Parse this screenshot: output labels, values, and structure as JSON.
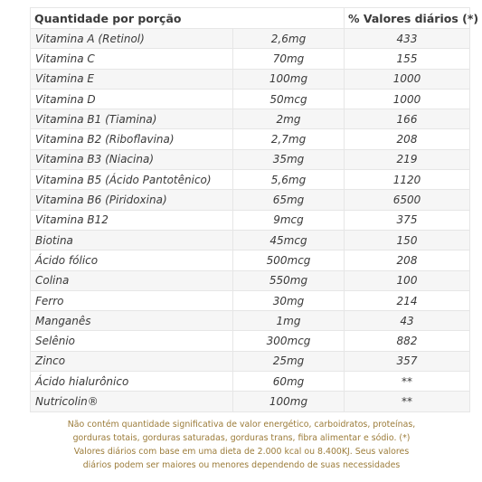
{
  "header": {
    "nutrient_label": "Quantidade por porção",
    "vd_label": "% Valores diários (*)"
  },
  "rows": [
    {
      "name": "Vitamina A (Retinol)",
      "amount": "2,6mg",
      "vd": "433"
    },
    {
      "name": "Vitamina C",
      "amount": "70mg",
      "vd": "155"
    },
    {
      "name": "Vitamina E",
      "amount": "100mg",
      "vd": "1000"
    },
    {
      "name": "Vitamina D",
      "amount": "50mcg",
      "vd": "1000"
    },
    {
      "name": "Vitamina B1 (Tiamina)",
      "amount": "2mg",
      "vd": "166"
    },
    {
      "name": "Vitamina B2 (Riboflavina)",
      "amount": "2,7mg",
      "vd": "208"
    },
    {
      "name": "Vitamina B3 (Niacina)",
      "amount": "35mg",
      "vd": "219"
    },
    {
      "name": "Vitamina B5 (Ácido Pantotênico)",
      "amount": "5,6mg",
      "vd": "1120"
    },
    {
      "name": "Vitamina B6 (Piridoxina)",
      "amount": "65mg",
      "vd": "6500"
    },
    {
      "name": "Vitamina B12",
      "amount": "9mcg",
      "vd": "375"
    },
    {
      "name": "Biotina",
      "amount": "45mcg",
      "vd": "150"
    },
    {
      "name": "Ácido fólico",
      "amount": "500mcg",
      "vd": "208"
    },
    {
      "name": "Colina",
      "amount": "550mg",
      "vd": "100"
    },
    {
      "name": "Ferro",
      "amount": "30mg",
      "vd": "214"
    },
    {
      "name": "Manganês",
      "amount": "1mg",
      "vd": "43"
    },
    {
      "name": "Selênio",
      "amount": "300mcg",
      "vd": "882"
    },
    {
      "name": "Zinco",
      "amount": "25mg",
      "vd": "357"
    },
    {
      "name": "Ácido hialurônico",
      "amount": "60mg",
      "vd": "**"
    },
    {
      "name": "Nutricolin®",
      "amount": "100mg",
      "vd": "**"
    }
  ],
  "footnote": {
    "line1": "Não contém quantidade significativa de valor energético, carboidratos, proteínas,",
    "line2": "gorduras totais, gorduras saturadas, gorduras trans, fibra alimentar e sódio. (*)",
    "line3": "Valores diários com base em uma dieta de 2.000 kcal ou 8.400KJ. Seus valores",
    "line4": "diários podem ser maiores ou menores dependendo de suas necessidades"
  },
  "colors": {
    "text": "#3a3a3a",
    "footnote": "#9c7c3a",
    "row_shade": "#f6f6f6",
    "border": "#e6e6e6"
  }
}
